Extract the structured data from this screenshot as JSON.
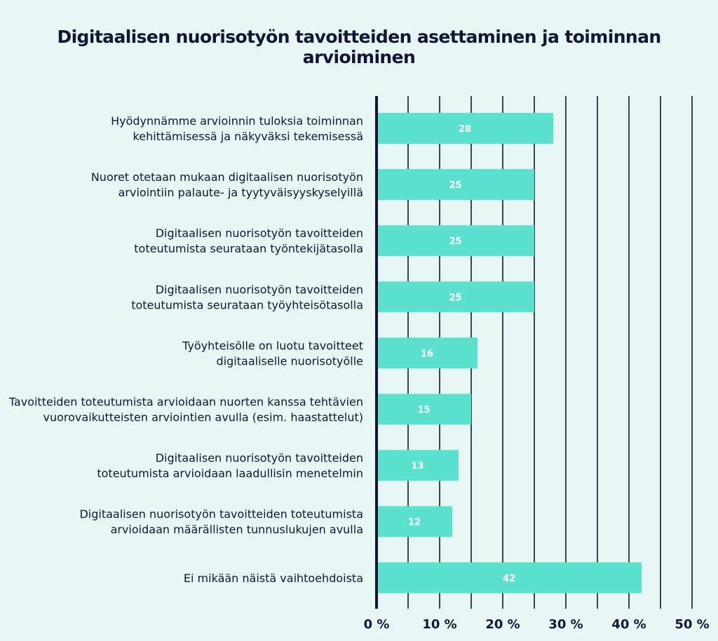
{
  "chart_data": {
    "type": "bar",
    "orientation": "horizontal",
    "title": "Digitaalisen nuorisotyön tavoitteiden asettaminen ja toiminnan arvioiminen",
    "categories": [
      [
        "Hyödynnämme arvioinnin tuloksia toiminnan",
        "kehittämisessä ja näkyväksi tekemisessä"
      ],
      [
        "Nuoret otetaan mukaan digitaalisen nuorisotyön",
        "arviointiin palaute- ja tyytyväisyyskyselyillä"
      ],
      [
        "Digitaalisen nuorisotyön tavoitteiden",
        "toteutumista seurataan työntekijätasolla"
      ],
      [
        "Digitaalisen nuorisotyön tavoitteiden",
        "toteutumista seurataan työyhteisötasolla"
      ],
      [
        "Työyhteisölle on luotu tavoitteet",
        "digitaaliselle nuorisotyölle"
      ],
      [
        "Tavoitteiden toteutumista arvioidaan nuorten kanssa tehtävien",
        "vuorovaikutteisten arviointien avulla (esim. haastattelut)"
      ],
      [
        "Digitaalisen nuorisotyön tavoitteiden",
        "toteutumista arvioidaan laadullisin menetelmin"
      ],
      [
        "Digitaalisen nuorisotyön tavoitteiden toteutumista",
        "arvioidaan määrällisten tunnuslukujen avulla"
      ],
      [
        "Ei mikään näistä vaihtoehdoista"
      ]
    ],
    "values": [
      28,
      25,
      25,
      25,
      16,
      15,
      13,
      12,
      42
    ],
    "xlim": [
      0,
      50
    ],
    "xticks": [
      0,
      10,
      20,
      30,
      40,
      50
    ],
    "xtick_labels": [
      "0 %",
      "10 %",
      "20 %",
      "30 %",
      "40 %",
      "50 %"
    ],
    "grid_step": 5,
    "grid": true,
    "legend": "none",
    "colors": {
      "bar": "#5ce1cf",
      "background": "#e7f7f3",
      "text": "#141437",
      "gridline": "#141437",
      "value_label": "#ffffff"
    }
  }
}
